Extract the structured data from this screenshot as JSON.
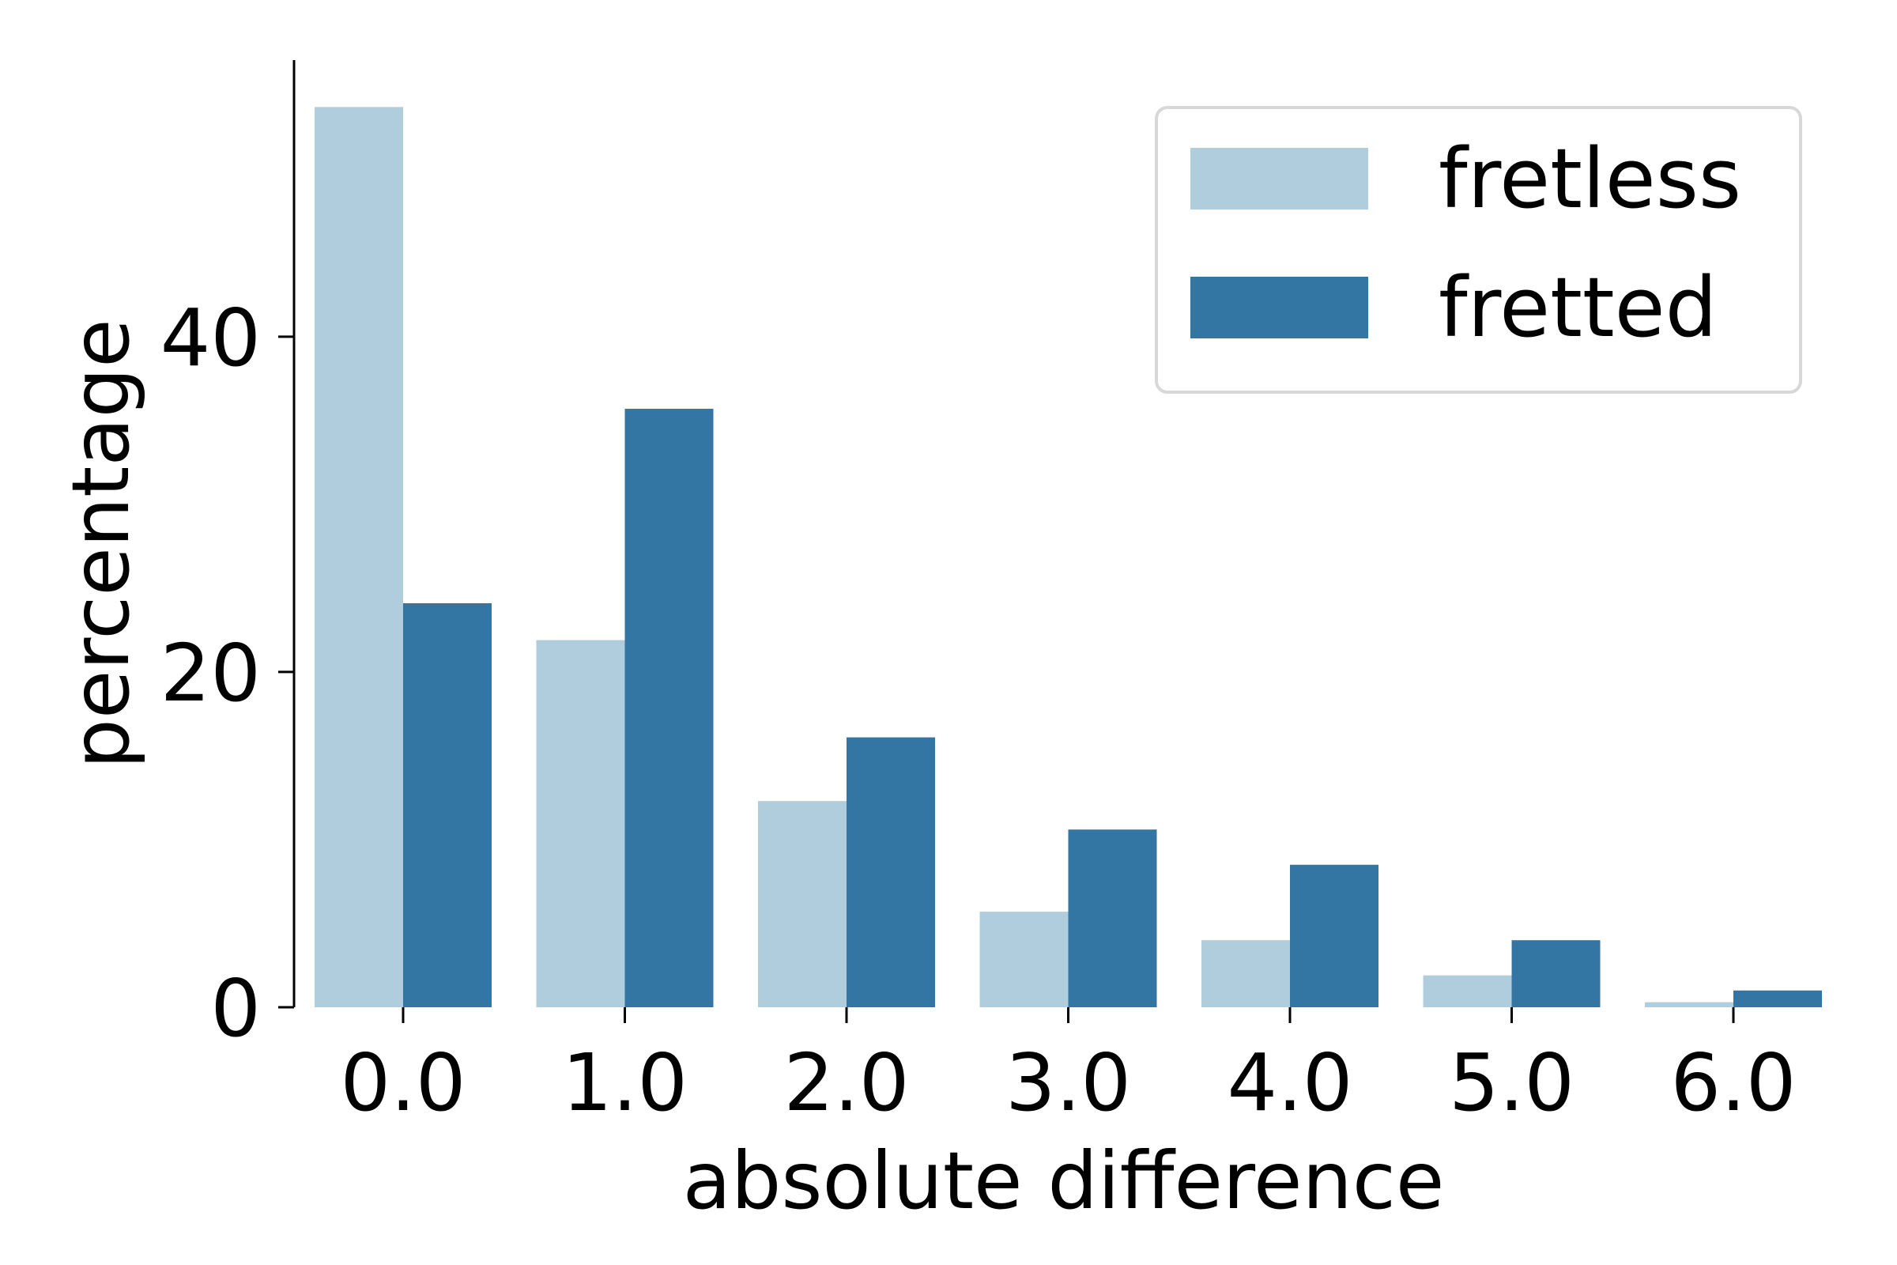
{
  "chart_data": {
    "type": "bar",
    "title": "",
    "xlabel": "absolute difference",
    "ylabel": "percentage",
    "categories": [
      "0.0",
      "1.0",
      "2.0",
      "3.0",
      "4.0",
      "5.0",
      "6.0"
    ],
    "series": [
      {
        "name": "fretless",
        "color": "#b0cddd",
        "values": [
          53.7,
          21.9,
          12.3,
          5.7,
          4.0,
          1.9,
          0.3
        ]
      },
      {
        "name": "fretted",
        "color": "#3375a3",
        "values": [
          24.1,
          35.7,
          16.1,
          10.6,
          8.5,
          4.0,
          1.0
        ]
      }
    ],
    "ylim": [
      0,
      56.5
    ],
    "yticks": [
      0,
      20,
      40
    ],
    "grid": false,
    "legend": {
      "placement": "top-right"
    }
  }
}
